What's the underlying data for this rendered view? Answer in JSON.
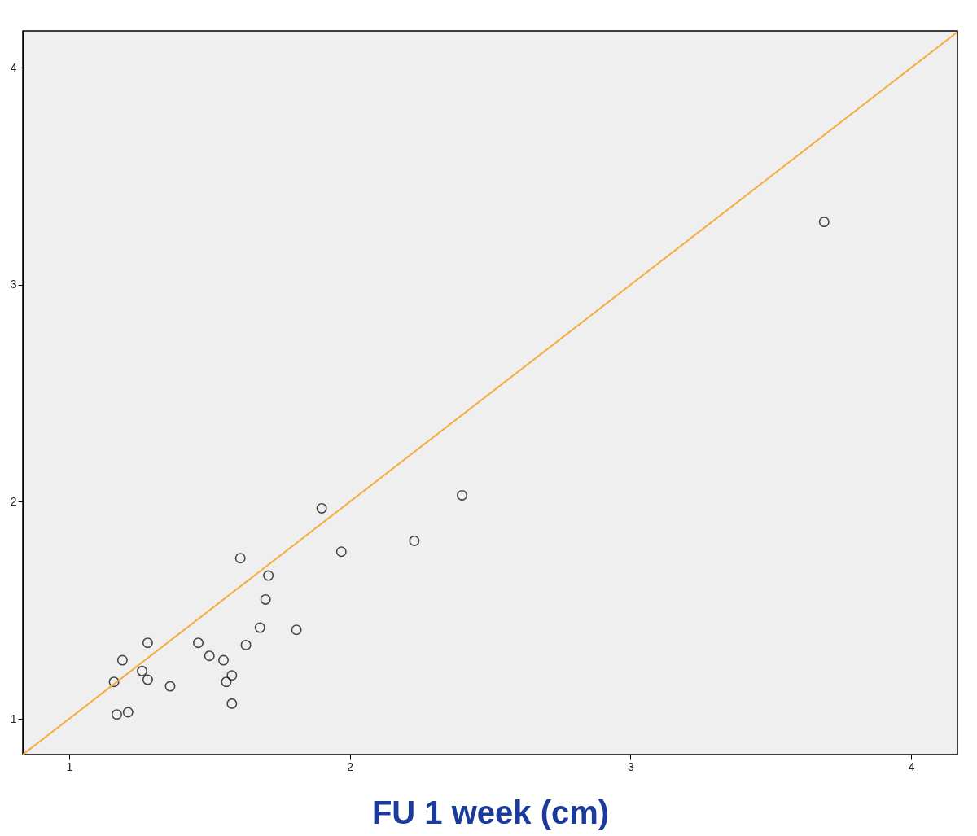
{
  "chart_data": {
    "type": "scatter",
    "xlabel": "FU 1 week (cm)",
    "xlim": [
      0.835,
      4.165
    ],
    "ylim": [
      0.835,
      4.17
    ],
    "xticks": [
      1,
      2,
      3,
      4
    ],
    "yticks": [
      1,
      2,
      3,
      4
    ],
    "grid": false,
    "legend": false,
    "marker": "circle",
    "series": [
      {
        "color": "#000000",
        "x": [
          1.16,
          1.19,
          1.17,
          1.21,
          1.26,
          1.28,
          1.28,
          1.36,
          1.46,
          1.5,
          1.55,
          1.56,
          1.58,
          1.58,
          1.61,
          1.63,
          1.68,
          1.7,
          1.71,
          1.81,
          1.9,
          1.97,
          2.23,
          2.4,
          3.69
        ],
        "values": [
          1.17,
          1.27,
          1.02,
          1.03,
          1.22,
          1.35,
          1.18,
          1.15,
          1.35,
          1.29,
          1.27,
          1.17,
          1.2,
          1.07,
          1.74,
          1.34,
          1.42,
          1.55,
          1.66,
          1.41,
          1.97,
          1.77,
          1.82,
          2.03,
          3.29
        ]
      },
      {
        "type": "line",
        "color": "#f5ac3c",
        "marker": "none",
        "line_style": "solid",
        "x": [
          0.835,
          4.165
        ],
        "values": [
          0.835,
          4.165
        ]
      }
    ]
  }
}
